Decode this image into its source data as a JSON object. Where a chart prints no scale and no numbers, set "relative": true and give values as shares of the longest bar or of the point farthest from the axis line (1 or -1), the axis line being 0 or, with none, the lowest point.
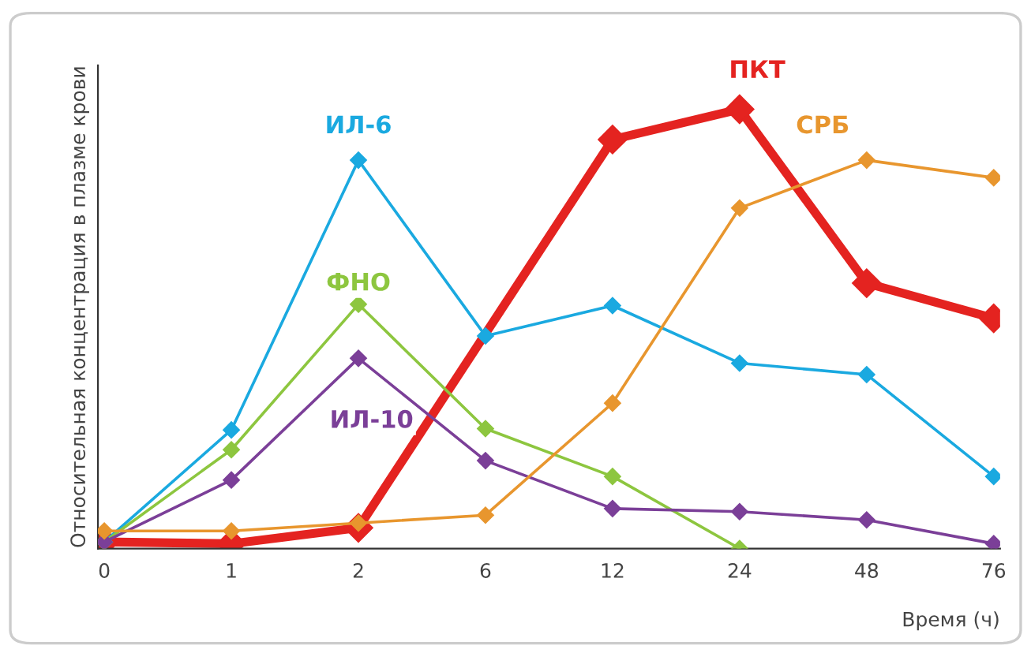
{
  "chart_data": {
    "type": "line",
    "relative": true,
    "ylabel": "Относительная концентрация в плазме крови",
    "xlabel": "Время (ч)",
    "categories": [
      "0",
      "1",
      "2",
      "6",
      "12",
      "24",
      "48",
      "76"
    ],
    "marker": "diamond",
    "grid": false,
    "legend": false,
    "series": [
      {
        "name": "ИЛ-6",
        "color": "#1aa9e0",
        "values": [
          0.015,
          0.27,
          0.884,
          0.484,
          0.553,
          0.422,
          0.396,
          0.164
        ]
      },
      {
        "name": "ФНО",
        "color": "#8dc63f",
        "values": [
          0.015,
          0.225,
          0.556,
          0.273,
          0.164,
          0,
          null,
          null
        ]
      },
      {
        "name": "ИЛ-10",
        "color": "#7b3f98",
        "values": [
          0.015,
          0.156,
          0.433,
          0.2,
          0.091,
          0.084,
          0.065,
          0.011
        ]
      },
      {
        "name": "СРБ",
        "color": "#e8962e",
        "values": [
          0.04,
          0.04,
          0.058,
          0.076,
          0.331,
          0.775,
          0.884,
          0.844
        ]
      },
      {
        "name": "ПКТ",
        "color": "#e42320",
        "values": [
          0.015,
          0.011,
          0.047,
          null,
          0.931,
          1,
          0.604,
          0.524
        ]
      }
    ]
  }
}
